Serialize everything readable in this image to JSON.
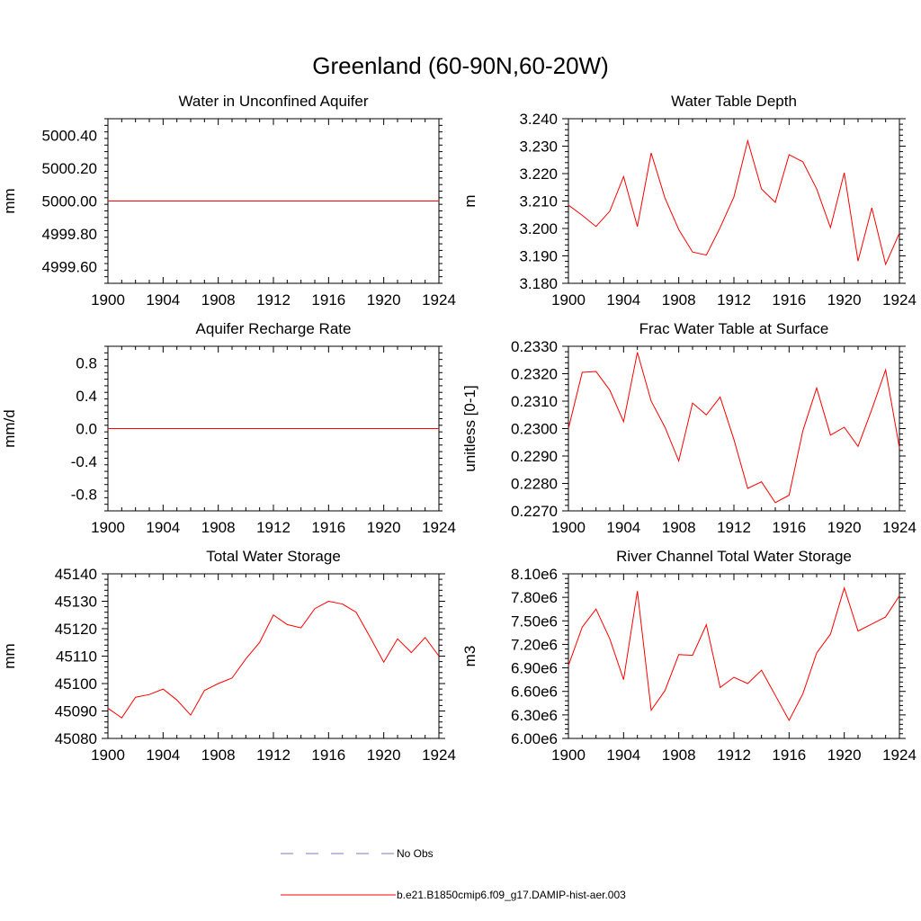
{
  "figure": {
    "title": "Greenland (60-90N,60-20W)"
  },
  "legend": {
    "placement": "bottom-center",
    "items": [
      {
        "label": "No Obs",
        "color": "#7a7ab8",
        "style": "dashed"
      },
      {
        "label": "b.e21.B1850cmip6.f09_g17.DAMIP-hist-aer.003",
        "color": "#ff0000",
        "style": "solid"
      }
    ]
  },
  "chart_data": [
    {
      "type": "line",
      "title": "Water in Unconfined Aquifer",
      "ylabel": "mm",
      "xlim": [
        1900,
        1924
      ],
      "ylim": [
        4999.5,
        5000.5
      ],
      "xticks": [
        "1900",
        "1904",
        "1908",
        "1912",
        "1916",
        "1920",
        "1924"
      ],
      "yticks": [
        "4999.60",
        "4999.80",
        "5000.00",
        "5000.20",
        "5000.40"
      ],
      "grid": false,
      "series": [
        {
          "color": "#ff0000",
          "x": [
            1900,
            1901,
            1902,
            1903,
            1904,
            1905,
            1906,
            1907,
            1908,
            1909,
            1910,
            1911,
            1912,
            1913,
            1914,
            1915,
            1916,
            1917,
            1918,
            1919,
            1920,
            1921,
            1922,
            1923,
            1924
          ],
          "values": [
            5000,
            5000,
            5000,
            5000,
            5000,
            5000,
            5000,
            5000,
            5000,
            5000,
            5000,
            5000,
            5000,
            5000,
            5000,
            5000,
            5000,
            5000,
            5000,
            5000,
            5000,
            5000,
            5000,
            5000,
            5000
          ]
        }
      ]
    },
    {
      "type": "line",
      "title": "Water Table Depth",
      "ylabel": "m",
      "xlim": [
        1900,
        1924
      ],
      "ylim": [
        3.18,
        3.24
      ],
      "xticks": [
        "1900",
        "1904",
        "1908",
        "1912",
        "1916",
        "1920",
        "1924"
      ],
      "yticks": [
        "3.180",
        "3.190",
        "3.200",
        "3.210",
        "3.220",
        "3.230",
        "3.240"
      ],
      "grid": false,
      "series": [
        {
          "color": "#ff0000",
          "x": [
            1900,
            1901,
            1902,
            1903,
            1904,
            1905,
            1906,
            1907,
            1908,
            1909,
            1910,
            1911,
            1912,
            1913,
            1914,
            1915,
            1916,
            1917,
            1918,
            1919,
            1920,
            1921,
            1922,
            1923,
            1924
          ],
          "values": [
            3.2085,
            3.2048,
            3.2007,
            3.2063,
            3.2189,
            3.2007,
            3.2275,
            3.2111,
            3.1996,
            3.1914,
            3.1903,
            3.2003,
            3.2115,
            3.232,
            3.2144,
            3.2095,
            3.2269,
            3.2243,
            3.2144,
            3.2003,
            3.2203,
            3.1881,
            3.2075,
            3.1869,
            3.1983
          ]
        }
      ]
    },
    {
      "type": "line",
      "title": "Aquifer Recharge Rate",
      "ylabel": "mm/d",
      "xlim": [
        1900,
        1924
      ],
      "ylim": [
        -1.0,
        1.0
      ],
      "xticks": [
        "1900",
        "1904",
        "1908",
        "1912",
        "1916",
        "1920",
        "1924"
      ],
      "yticks": [
        "-0.8",
        "-0.4",
        "0.0",
        "0.4",
        "0.8"
      ],
      "grid": false,
      "series": [
        {
          "color": "#ff0000",
          "x": [
            1900,
            1901,
            1902,
            1903,
            1904,
            1905,
            1906,
            1907,
            1908,
            1909,
            1910,
            1911,
            1912,
            1913,
            1914,
            1915,
            1916,
            1917,
            1918,
            1919,
            1920,
            1921,
            1922,
            1923,
            1924
          ],
          "values": [
            0,
            0,
            0,
            0,
            0,
            0,
            0,
            0,
            0,
            0,
            0,
            0,
            0,
            0,
            0,
            0,
            0,
            0,
            0,
            0,
            0,
            0,
            0,
            0,
            0
          ]
        }
      ]
    },
    {
      "type": "line",
      "title": "Frac Water Table at Surface",
      "ylabel": "unitless [0-1]",
      "xlim": [
        1900,
        1924
      ],
      "ylim": [
        0.227,
        0.233
      ],
      "xticks": [
        "1900",
        "1904",
        "1908",
        "1912",
        "1916",
        "1920",
        "1924"
      ],
      "yticks": [
        "0.2270",
        "0.2280",
        "0.2290",
        "0.2300",
        "0.2310",
        "0.2320",
        "0.2330"
      ],
      "grid": false,
      "series": [
        {
          "color": "#ff0000",
          "x": [
            1900,
            1901,
            1902,
            1903,
            1904,
            1905,
            1906,
            1907,
            1908,
            1909,
            1910,
            1911,
            1912,
            1913,
            1914,
            1915,
            1916,
            1917,
            1918,
            1919,
            1920,
            1921,
            1922,
            1923,
            1924
          ],
          "values": [
            0.23,
            0.23205,
            0.23208,
            0.2314,
            0.23025,
            0.23278,
            0.231,
            0.23005,
            0.22882,
            0.23093,
            0.2305,
            0.23115,
            0.2296,
            0.22782,
            0.22806,
            0.2273,
            0.22757,
            0.22992,
            0.23148,
            0.22976,
            0.23005,
            0.22935,
            0.2307,
            0.23214,
            0.2293
          ]
        }
      ]
    },
    {
      "type": "line",
      "title": "Total Water Storage",
      "ylabel": "mm",
      "xlim": [
        1900,
        1924
      ],
      "ylim": [
        45080,
        45140
      ],
      "xticks": [
        "1900",
        "1904",
        "1908",
        "1912",
        "1916",
        "1920",
        "1924"
      ],
      "yticks": [
        "45080",
        "45090",
        "45100",
        "45110",
        "45120",
        "45130",
        "45140"
      ],
      "grid": false,
      "series": [
        {
          "color": "#ff0000",
          "x": [
            1900,
            1901,
            1902,
            1903,
            1904,
            1905,
            1906,
            1907,
            1908,
            1909,
            1910,
            1911,
            1912,
            1913,
            1914,
            1915,
            1916,
            1917,
            1918,
            1919,
            1920,
            1921,
            1922,
            1923,
            1924
          ],
          "values": [
            45091,
            45087.5,
            45095,
            45096,
            45098,
            45094,
            45088.5,
            45097.5,
            45100,
            45102,
            45109,
            45115,
            45125,
            45121.5,
            45120.3,
            45127.3,
            45130,
            45129,
            45126,
            45117,
            45107.8,
            45116.3,
            45111.3,
            45116.8,
            45110
          ]
        }
      ]
    },
    {
      "type": "line",
      "title": "River Channel Total Water Storage",
      "ylabel": "m3",
      "xlim": [
        1900,
        1924
      ],
      "ylim": [
        6000000,
        8100000
      ],
      "xticks": [
        "1900",
        "1904",
        "1908",
        "1912",
        "1916",
        "1920",
        "1924"
      ],
      "yticks": [
        "6.00e6",
        "6.30e6",
        "6.60e6",
        "6.90e6",
        "7.20e6",
        "7.50e6",
        "7.80e6",
        "8.10e6"
      ],
      "grid": false,
      "series": [
        {
          "color": "#ff0000",
          "x": [
            1900,
            1901,
            1902,
            1903,
            1904,
            1905,
            1906,
            1907,
            1908,
            1909,
            1910,
            1911,
            1912,
            1913,
            1914,
            1915,
            1916,
            1917,
            1918,
            1919,
            1920,
            1921,
            1922,
            1923,
            1924
          ],
          "values": [
            6930000,
            7420000,
            7650000,
            7270000,
            6750000,
            7880000,
            6360000,
            6610000,
            7070000,
            7060000,
            7450000,
            6650000,
            6780000,
            6700000,
            6870000,
            6550000,
            6230000,
            6570000,
            7090000,
            7330000,
            7920000,
            7370000,
            7460000,
            7550000,
            7820000
          ]
        }
      ]
    }
  ]
}
